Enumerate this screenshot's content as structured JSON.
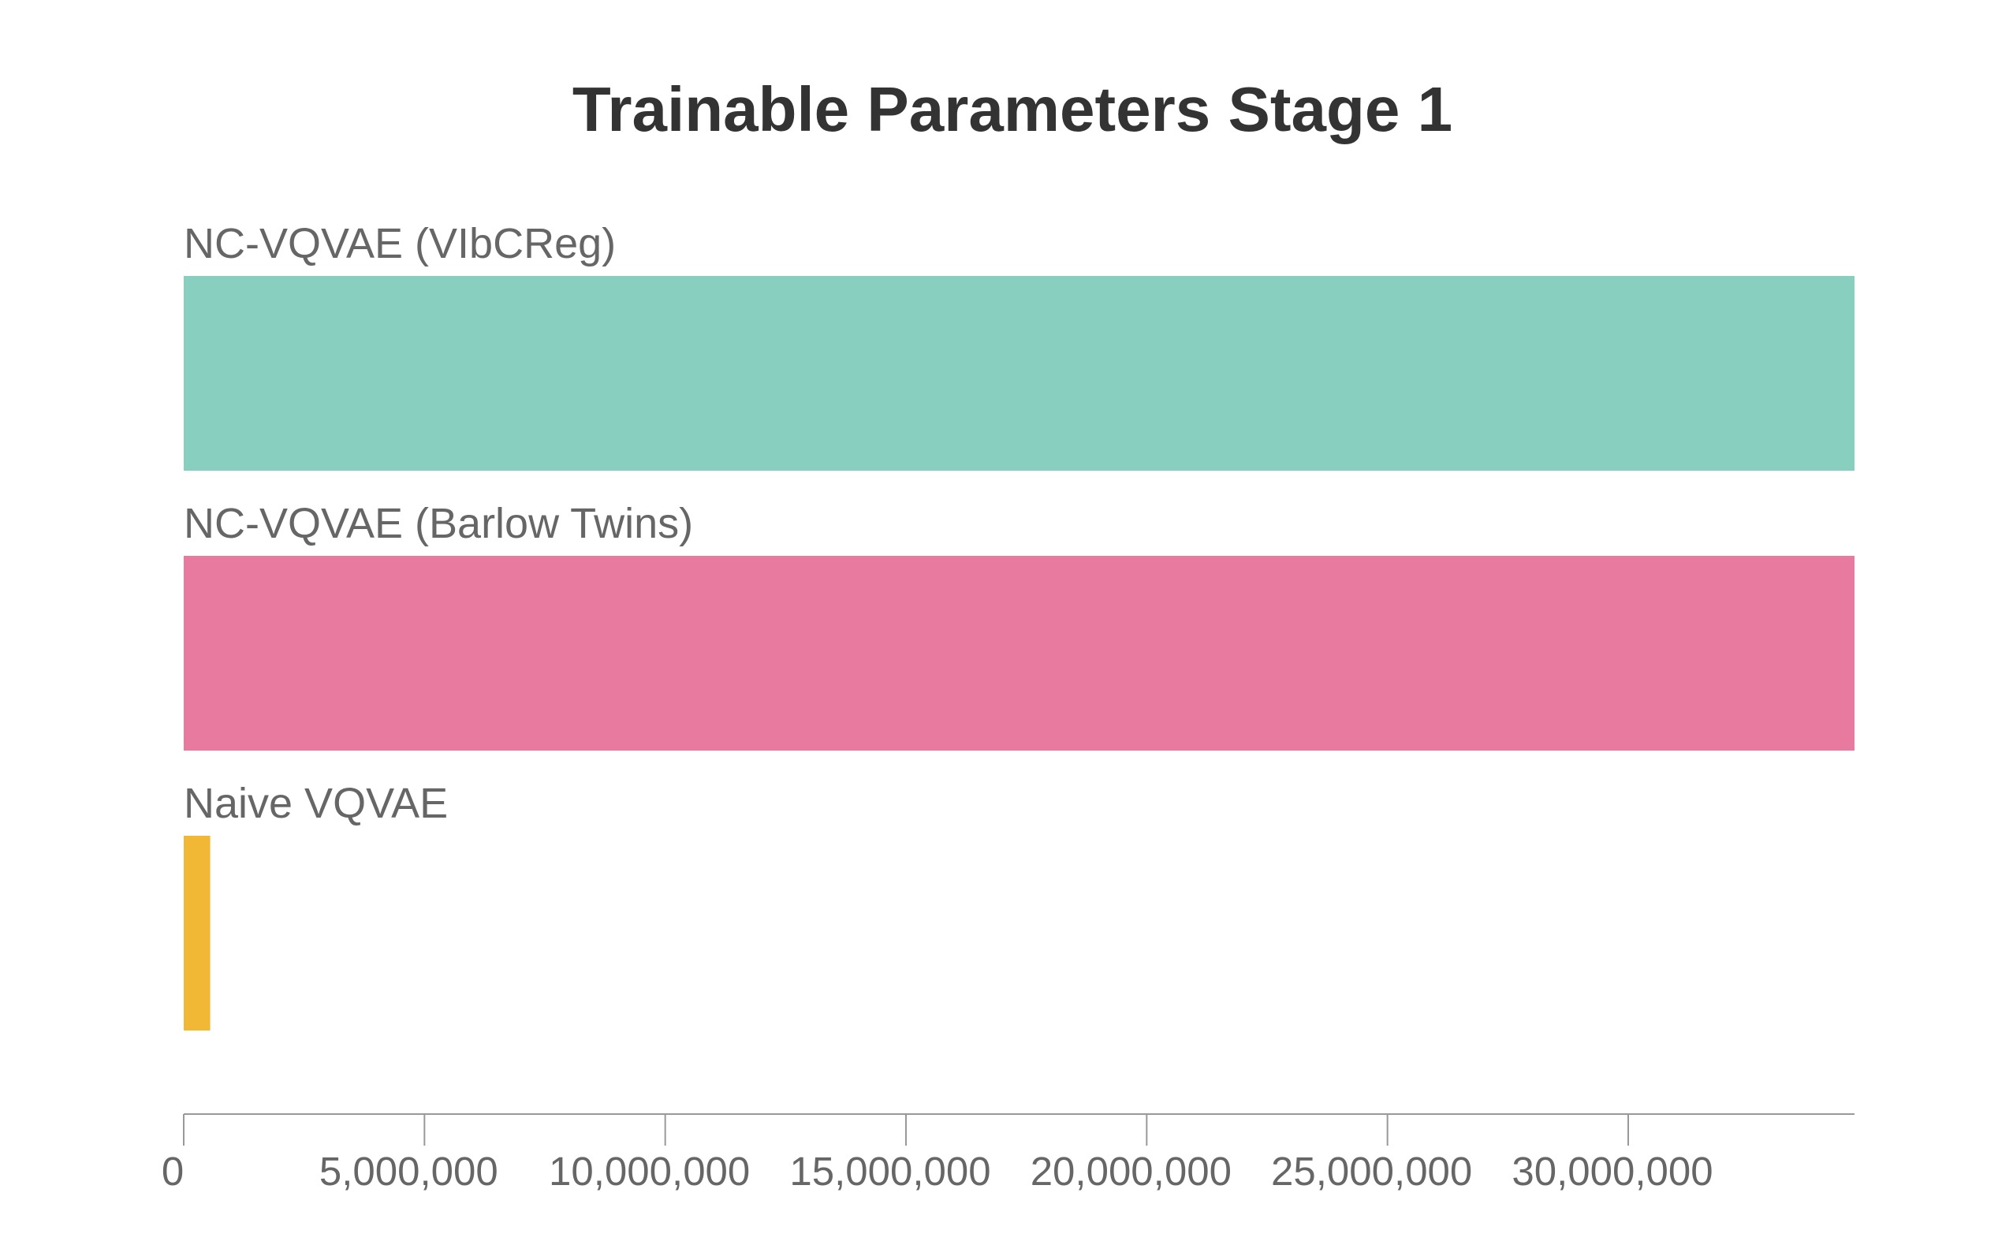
{
  "chart_data": {
    "type": "bar",
    "orientation": "horizontal",
    "title": "Trainable Parameters Stage 1",
    "xlabel": "",
    "ylabel": "",
    "categories": [
      "NC-VQVAE (VIbCReg)",
      "NC-VQVAE (Barlow Twins)",
      "Naive VQVAE"
    ],
    "values": [
      34700000,
      34700000,
      550000
    ],
    "colors": [
      "#89CFC0",
      "#E97A9F",
      "#F0B834"
    ],
    "xlim": [
      0,
      34700000
    ],
    "xticks": [
      0,
      5000000,
      10000000,
      15000000,
      20000000,
      25000000,
      30000000
    ],
    "xtick_labels": [
      "0",
      "5,000,000",
      "10,000,000",
      "15,000,000",
      "20,000,000",
      "25,000,000",
      "30,000,000"
    ],
    "grid": false,
    "legend": "none"
  }
}
